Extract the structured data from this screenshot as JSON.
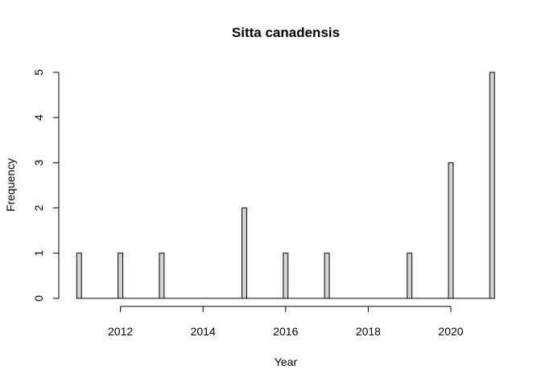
{
  "chart_data": {
    "type": "bar",
    "title": "Sitta canadensis",
    "xlabel": "Year",
    "ylabel": "Frequency",
    "x_ticks": [
      2012,
      2014,
      2016,
      2018,
      2020
    ],
    "y_ticks": [
      0,
      1,
      2,
      3,
      4,
      5
    ],
    "xlim": [
      2011,
      2021
    ],
    "ylim": [
      0,
      5
    ],
    "bin_width_years": 0.1,
    "x": [
      2011,
      2012,
      2013,
      2015,
      2016,
      2017,
      2019,
      2020,
      2021
    ],
    "values": [
      1,
      1,
      1,
      2,
      1,
      1,
      1,
      3,
      5
    ],
    "bar_fill": "#d3d3d3",
    "bar_stroke": "#000000",
    "grid": false,
    "legend": "none"
  }
}
